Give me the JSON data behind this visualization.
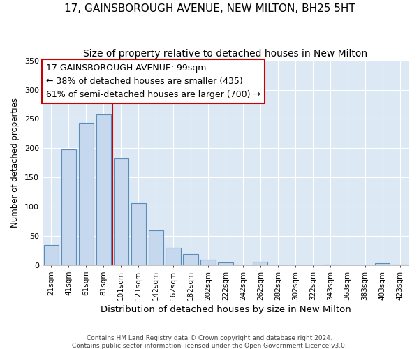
{
  "title": "17, GAINSBOROUGH AVENUE, NEW MILTON, BH25 5HT",
  "subtitle": "Size of property relative to detached houses in New Milton",
  "xlabel": "Distribution of detached houses by size in New Milton",
  "ylabel": "Number of detached properties",
  "bar_labels": [
    "21sqm",
    "41sqm",
    "61sqm",
    "81sqm",
    "101sqm",
    "121sqm",
    "142sqm",
    "162sqm",
    "182sqm",
    "202sqm",
    "222sqm",
    "242sqm",
    "262sqm",
    "282sqm",
    "302sqm",
    "322sqm",
    "343sqm",
    "363sqm",
    "383sqm",
    "403sqm",
    "423sqm"
  ],
  "bar_values": [
    35,
    198,
    243,
    258,
    183,
    106,
    60,
    30,
    20,
    10,
    5,
    0,
    6,
    0,
    0,
    0,
    2,
    0,
    0,
    4,
    2
  ],
  "bar_color": "#c5d8ed",
  "bar_edge_color": "#5b8db8",
  "ylim": [
    0,
    350
  ],
  "yticks": [
    0,
    50,
    100,
    150,
    200,
    250,
    300,
    350
  ],
  "vline_color": "#cc0000",
  "annotation_title": "17 GAINSBOROUGH AVENUE: 99sqm",
  "annotation_line1": "← 38% of detached houses are smaller (435)",
  "annotation_line2": "61% of semi-detached houses are larger (700) →",
  "annotation_box_color": "#cc0000",
  "footer1": "Contains HM Land Registry data © Crown copyright and database right 2024.",
  "footer2": "Contains public sector information licensed under the Open Government Licence v3.0.",
  "fig_background_color": "#ffffff",
  "plot_bg_color": "#dce9f5",
  "grid_color": "#ffffff",
  "title_fontsize": 11,
  "subtitle_fontsize": 10,
  "xlabel_fontsize": 9.5,
  "ylabel_fontsize": 8.5,
  "annotation_fontsize": 9,
  "footer_fontsize": 6.5
}
